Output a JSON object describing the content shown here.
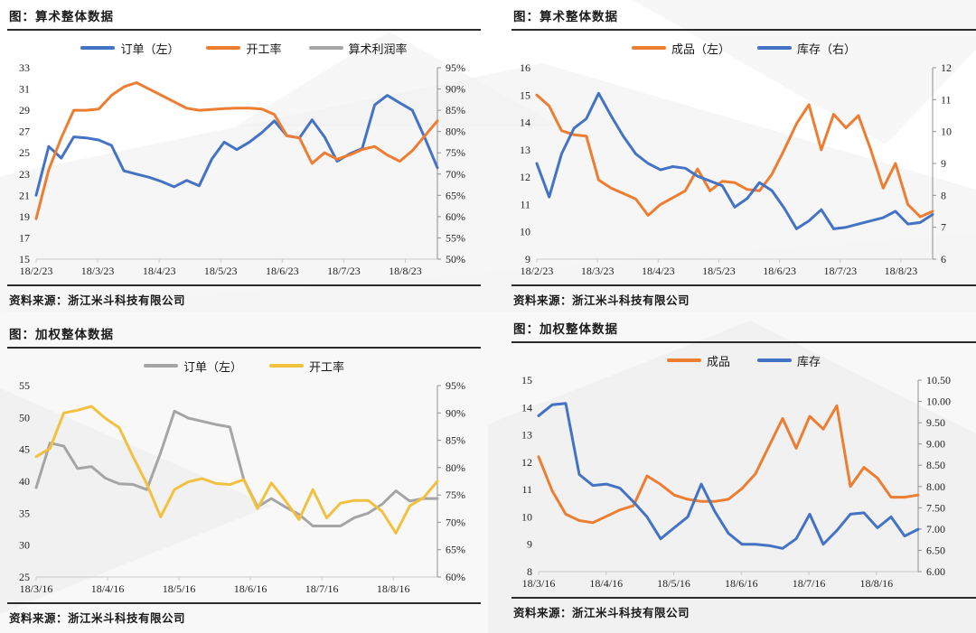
{
  "page": {
    "background_color": "#ffffff",
    "accent_text_color": "#1a1a1a"
  },
  "chart_data": [
    {
      "type": "line",
      "title": "图：算术整体数据",
      "source": "资料来源：浙江米斗科技有限公司",
      "legend": [
        {
          "label": "订单（左）",
          "color": "#4472C4"
        },
        {
          "label": "开工率",
          "color": "#ED7D31"
        },
        {
          "label": "算术利润率",
          "color": "#A5A5A5"
        }
      ],
      "x_labels": [
        "18/2/23",
        "18/3/23",
        "18/4/23",
        "18/5/23",
        "18/6/23",
        "18/7/23",
        "18/8/23"
      ],
      "x_span": 0.92,
      "left_axis": {
        "min": 15,
        "max": 33,
        "ticks": [
          "33",
          "31",
          "29",
          "27",
          "25",
          "23",
          "21",
          "19",
          "17",
          "15"
        ]
      },
      "right_axis": {
        "min": 50,
        "max": 95,
        "ticks": [
          "95%",
          "90%",
          "85%",
          "80%",
          "75%",
          "70%",
          "65%",
          "60%",
          "55%",
          "50%"
        ]
      },
      "series": [
        {
          "name": "订单（左）",
          "axis": "left",
          "color": "#4472C4",
          "values": [
            21.0,
            25.6,
            24.5,
            26.5,
            26.4,
            26.2,
            25.7,
            23.3,
            23.0,
            22.7,
            22.3,
            21.8,
            22.4,
            21.9,
            24.4,
            26.0,
            25.3,
            26.0,
            26.9,
            28.0,
            26.6,
            26.4,
            28.1,
            26.5,
            24.2,
            24.9,
            25.4,
            29.5,
            30.4,
            29.7,
            29.0,
            26.4,
            23.6
          ]
        },
        {
          "name": "开工率",
          "axis": "right",
          "color": "#ED7D31",
          "values": [
            59.5,
            71.0,
            78.5,
            85.0,
            85.0,
            85.3,
            88.5,
            90.5,
            91.5,
            90.0,
            88.5,
            87.0,
            85.5,
            85.0,
            85.2,
            85.4,
            85.5,
            85.5,
            85.3,
            84.0,
            79.0,
            78.5,
            72.5,
            75.0,
            73.5,
            74.5,
            75.8,
            76.5,
            74.5,
            73.0,
            75.5,
            79.0,
            82.5
          ]
        },
        {
          "name": "算术利润率",
          "axis": "right",
          "color": "#A5A5A5",
          "values": []
        }
      ]
    },
    {
      "type": "line",
      "title": "图：算术整体数据",
      "source": "资料来源：浙江米斗科技有限公司",
      "legend": [
        {
          "label": "成品（左）",
          "color": "#ED7D31"
        },
        {
          "label": "库存（右）",
          "color": "#4472C4"
        }
      ],
      "x_labels": [
        "18/2/23",
        "18/3/23",
        "18/4/23",
        "18/5/23",
        "18/6/23",
        "18/7/23",
        "18/8/23"
      ],
      "x_span": 0.92,
      "left_axis": {
        "min": 9,
        "max": 16,
        "ticks": [
          "16",
          "15",
          "14",
          "13",
          "12",
          "11",
          "10",
          "9"
        ]
      },
      "right_axis": {
        "min": 6,
        "max": 12,
        "ticks": [
          "12",
          "11",
          "10",
          "9",
          "8",
          "7",
          "6"
        ]
      },
      "series": [
        {
          "name": "成品（左）",
          "axis": "left",
          "color": "#ED7D31",
          "values": [
            15.0,
            14.6,
            13.7,
            13.55,
            13.5,
            11.9,
            11.6,
            11.4,
            11.2,
            10.6,
            11.0,
            11.25,
            11.5,
            12.3,
            11.5,
            11.85,
            11.8,
            11.55,
            11.5,
            12.1,
            13.0,
            13.95,
            14.65,
            13.0,
            14.3,
            13.8,
            14.25,
            13.0,
            11.6,
            12.5,
            11.0,
            10.55,
            10.75
          ]
        },
        {
          "name": "库存（右）",
          "axis": "right",
          "color": "#4472C4",
          "values": [
            9.0,
            7.95,
            9.3,
            10.1,
            10.4,
            11.2,
            10.5,
            9.85,
            9.3,
            9.0,
            8.8,
            8.9,
            8.85,
            8.6,
            8.45,
            8.3,
            7.63,
            7.9,
            8.4,
            8.15,
            7.6,
            6.95,
            7.2,
            7.55,
            6.95,
            7.0,
            7.1,
            7.2,
            7.3,
            7.5,
            7.1,
            7.15,
            7.4
          ]
        }
      ]
    },
    {
      "type": "line",
      "title": "图：加权整体数据",
      "source": "资料来源：浙江米斗科技有限公司",
      "legend": [
        {
          "label": "订单（左）",
          "color": "#A5A5A5"
        },
        {
          "label": "开工率",
          "color": "#F2C140"
        }
      ],
      "x_labels": [
        "18/3/16",
        "18/4/16",
        "18/5/16",
        "18/6/16",
        "18/7/16",
        "18/8/16"
      ],
      "x_span": 0.89,
      "left_axis": {
        "min": 25,
        "max": 55,
        "ticks": [
          "55",
          "50",
          "45",
          "40",
          "35",
          "30",
          "25"
        ]
      },
      "right_axis": {
        "min": 60,
        "max": 95,
        "ticks": [
          "95%",
          "90%",
          "85%",
          "80%",
          "75%",
          "70%",
          "65%",
          "60%"
        ]
      },
      "series": [
        {
          "name": "订单（左）",
          "axis": "left",
          "color": "#A5A5A5",
          "values": [
            39.0,
            46.0,
            45.5,
            42.0,
            42.3,
            40.5,
            39.6,
            39.5,
            38.7,
            44.5,
            51.0,
            49.9,
            49.4,
            48.9,
            48.5,
            40.3,
            36.0,
            37.3,
            36.0,
            34.8,
            33.0,
            33.0,
            33.0,
            34.3,
            35.0,
            36.4,
            38.5,
            36.9,
            37.3,
            37.3
          ]
        },
        {
          "name": "开工率",
          "axis": "right",
          "color": "#F2C140",
          "values": [
            82.0,
            83.5,
            90.0,
            90.5,
            91.2,
            89.0,
            87.3,
            82.0,
            77.0,
            71.0,
            76.0,
            77.4,
            78.0,
            77.1,
            76.9,
            77.8,
            72.5,
            77.2,
            74.0,
            70.5,
            76.0,
            70.8,
            73.5,
            74.0,
            74.0,
            72.0,
            68.0,
            73.0,
            74.5,
            77.5
          ]
        }
      ]
    },
    {
      "type": "line",
      "title": "图：加权整体数据",
      "source": "资料来源：浙江米斗科技有限公司",
      "legend": [
        {
          "label": "成品",
          "color": "#ED7D31"
        },
        {
          "label": "库存",
          "color": "#4472C4"
        }
      ],
      "x_labels": [
        "18/3/16",
        "18/4/16",
        "18/5/16",
        "18/6/16",
        "18/7/16",
        "18/8/16"
      ],
      "x_span": 0.89,
      "left_axis": {
        "min": 8,
        "max": 15,
        "ticks": [
          "15",
          "14",
          "13",
          "12",
          "11",
          "10",
          "9",
          "8"
        ]
      },
      "right_axis": {
        "min": 6.0,
        "max": 10.5,
        "ticks": [
          "10.50",
          "10.00",
          "9.50",
          "9.00",
          "8.50",
          "8.00",
          "7.50",
          "7.00",
          "6.50",
          "6.00"
        ]
      },
      "series": [
        {
          "name": "成品",
          "axis": "right",
          "color": "#ED7D31",
          "values": [
            8.7,
            7.9,
            7.35,
            7.2,
            7.15,
            7.3,
            7.45,
            7.55,
            8.25,
            8.05,
            7.8,
            7.7,
            7.65,
            7.65,
            7.7,
            7.95,
            8.3,
            8.95,
            9.6,
            8.9,
            9.65,
            9.35,
            9.9,
            8.0,
            8.45,
            8.2,
            7.75,
            7.75,
            7.8
          ]
        },
        {
          "name": "库存",
          "axis": "left",
          "color": "#4472C4",
          "values": [
            13.7,
            14.1,
            14.15,
            11.55,
            11.15,
            11.2,
            11.05,
            10.55,
            10.0,
            9.2,
            9.6,
            10.0,
            11.2,
            10.2,
            9.4,
            9.0,
            9.0,
            8.95,
            8.85,
            9.2,
            10.1,
            9.0,
            9.5,
            10.1,
            10.15,
            9.6,
            10.0,
            9.3,
            9.55
          ]
        }
      ]
    }
  ]
}
